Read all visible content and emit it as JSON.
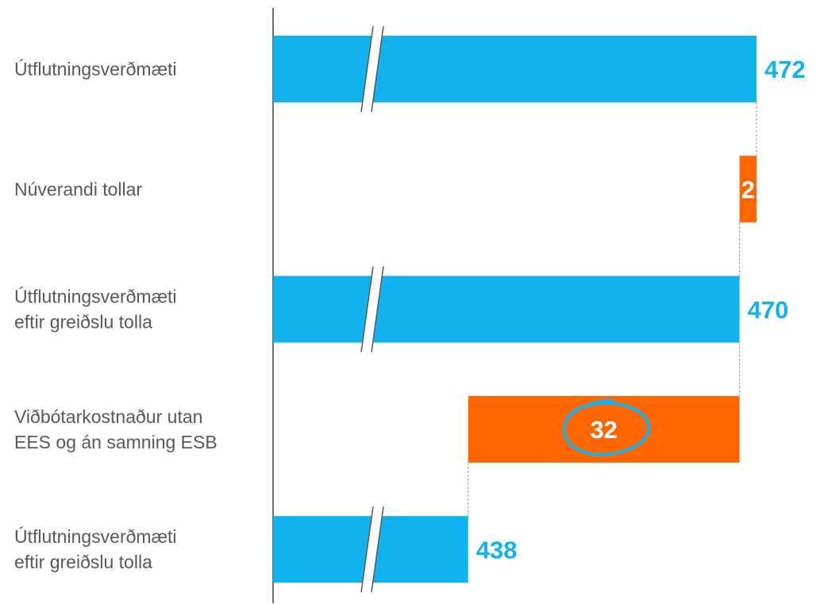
{
  "chart_data": {
    "type": "waterfall",
    "orientation": "horizontal",
    "categories": [
      "Útflutningsverðmæti",
      "Núverandi tollar",
      "Útflutningsverðmæti\neftir greiðslu tolla",
      "Viðbótarkostnaður utan\nEES og án samning ESB",
      "Útflutningsverðmæti\neftir greiðslu tolla"
    ],
    "values": [
      472,
      2,
      470,
      32,
      438
    ],
    "measures": [
      "total",
      "decrease",
      "total",
      "decrease",
      "total"
    ],
    "colors": {
      "total": "#12b2ee",
      "decrease": "#ff6600"
    },
    "xlim": [
      415,
      472
    ],
    "axis_break": true
  }
}
